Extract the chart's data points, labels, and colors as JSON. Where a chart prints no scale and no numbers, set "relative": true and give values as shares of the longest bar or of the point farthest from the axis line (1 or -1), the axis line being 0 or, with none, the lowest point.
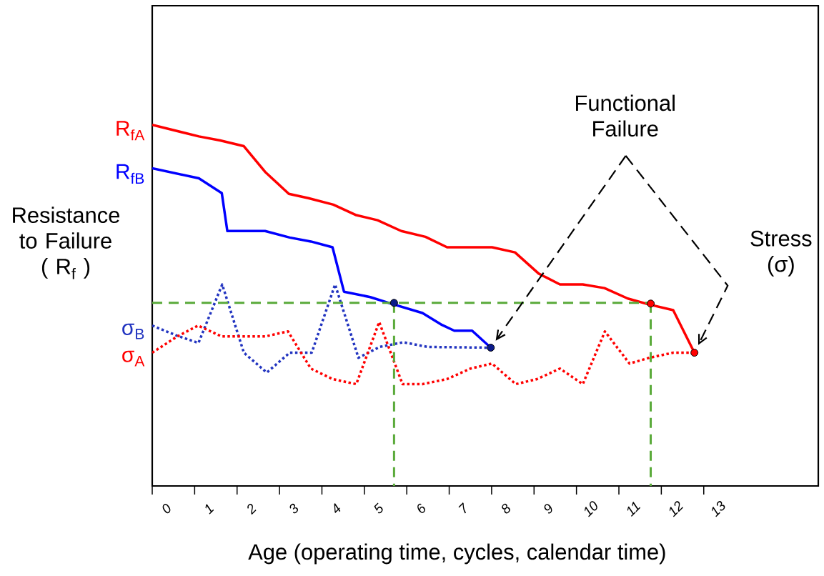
{
  "chart_data": {
    "type": "line",
    "relative": true,
    "tick_labels": "x",
    "xlabel": "Age  (operating time, cycles, calendar time)",
    "ylabel": "Resistance to Failure ( R$_{f}$ )",
    "y2label": "Stress (σ)",
    "annotations": [
      "Functional Failure"
    ],
    "xlim": [
      0,
      15.7
    ],
    "xticks": [
      0,
      1,
      2,
      3,
      4,
      5,
      6,
      7,
      8,
      9,
      10,
      11,
      12,
      13
    ],
    "series": [
      {
        "name": "R$_{fA}$",
        "color": "#ff0000",
        "line_style": "solid",
        "x": [
          0,
          1.1,
          1.6,
          2.16,
          2.66,
          3.22,
          3.68,
          4.27,
          4.81,
          5.31,
          5.87,
          6.44,
          6.95,
          8.01,
          8.55,
          9.11,
          9.61,
          10.15,
          10.66,
          11.21,
          11.7,
          12.28,
          12.78
        ],
        "values": [
          1,
          0.968,
          0.957,
          0.941,
          0.87,
          0.809,
          0.797,
          0.779,
          0.75,
          0.736,
          0.706,
          0.69,
          0.661,
          0.661,
          0.647,
          0.588,
          0.558,
          0.558,
          0.548,
          0.519,
          0.503,
          0.487,
          0.369
        ]
      },
      {
        "name": "R$_{fB}$",
        "color": "#0000ff",
        "line_style": "solid",
        "x": [
          0,
          1.1,
          1.64,
          1.77,
          2.66,
          3.24,
          3.74,
          4.25,
          4.52,
          5.14,
          5.63,
          6.37,
          6.83,
          7.12,
          7.54,
          7.98
        ],
        "values": [
          0.88,
          0.852,
          0.811,
          0.706,
          0.706,
          0.688,
          0.677,
          0.661,
          0.538,
          0.523,
          0.505,
          0.479,
          0.446,
          0.43,
          0.43,
          0.383
        ]
      },
      {
        "name": "σ$_{B}$",
        "color": "#2234c0",
        "line_style": "dotted",
        "x": [
          0,
          0.59,
          1.09,
          1.65,
          2.16,
          2.7,
          3.24,
          3.76,
          4.31,
          4.86,
          5.36,
          5.92,
          6.49,
          7.98
        ],
        "values": [
          0.444,
          0.416,
          0.396,
          0.558,
          0.369,
          0.314,
          0.369,
          0.369,
          0.558,
          0.355,
          0.385,
          0.398,
          0.385,
          0.383
        ]
      },
      {
        "name": "σ$_{A}$",
        "color": "#ff0000",
        "line_style": "dotted",
        "x": [
          0,
          0.59,
          1.08,
          1.64,
          2.66,
          3.2,
          3.74,
          4.25,
          4.81,
          5.35,
          5.9,
          6.37,
          6.95,
          7.5,
          8.01,
          8.57,
          9.07,
          9.61,
          10.15,
          10.67,
          11.25,
          11.72,
          12.28,
          12.78
        ],
        "values": [
          0.369,
          0.414,
          0.444,
          0.414,
          0.414,
          0.428,
          0.325,
          0.296,
          0.282,
          0.454,
          0.282,
          0.282,
          0.296,
          0.325,
          0.339,
          0.282,
          0.296,
          0.325,
          0.282,
          0.428,
          0.339,
          0.355,
          0.369,
          0.369
        ]
      },
      {
        "type": "line",
        "color": "#5aaa3a",
        "line_style": "dashed",
        "x": [
          0,
          11.75
        ],
        "values": [
          0.507,
          0.507
        ]
      },
      {
        "type": "line",
        "color": "#5aaa3a",
        "line_style": "dashed",
        "x": [
          5.7,
          5.7
        ],
        "values": [
          0.507,
          0
        ]
      },
      {
        "type": "line",
        "color": "#5aaa3a",
        "line_style": "dashed",
        "x": [
          11.75,
          11.75
        ],
        "values": [
          0.507,
          0
        ]
      },
      {
        "type": "scatter",
        "marker": "circle",
        "x": [
          5.7,
          7.98,
          11.75,
          12.78
        ],
        "values": [
          0.507,
          0.383,
          0.505,
          0.369
        ],
        "colors": [
          "#0b1a8a",
          "#0b1a8a",
          "#ff0000",
          "#ff0000"
        ]
      }
    ]
  }
}
